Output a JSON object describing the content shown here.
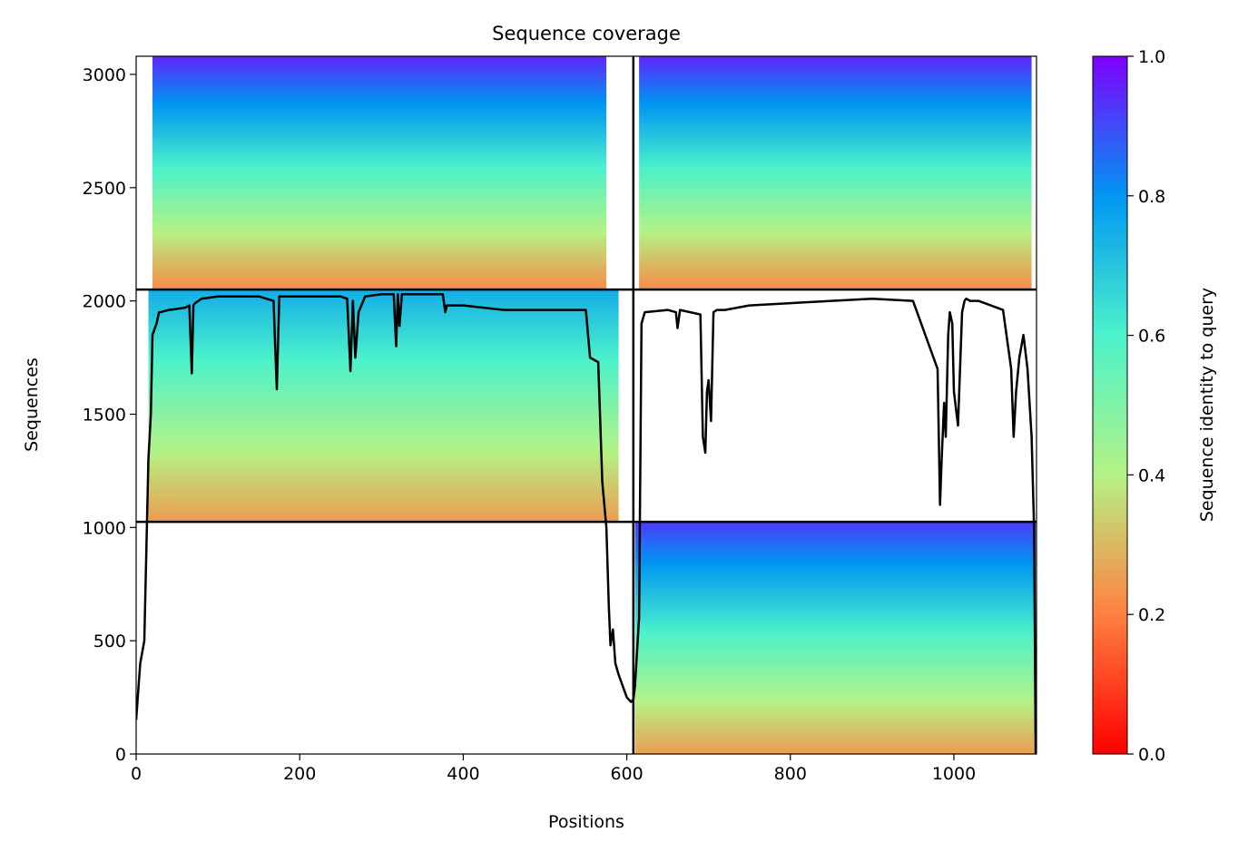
{
  "chart_data": {
    "type": "heatmap",
    "title": "Sequence coverage",
    "xlabel": "Positions",
    "ylabel": "Sequences",
    "xlim": [
      0,
      1101
    ],
    "ylim": [
      0,
      3080
    ],
    "x_ticks": [
      0,
      200,
      400,
      600,
      800,
      1000
    ],
    "y_ticks": [
      0,
      500,
      1000,
      1500,
      2000,
      2500,
      3000
    ],
    "colorbar": {
      "label": "Sequence identity to query",
      "range": [
        0,
        1
      ],
      "ticks": [
        "0.0",
        "0.2",
        "0.4",
        "0.6",
        "0.8",
        "1.0"
      ],
      "colormap": "rainbow_r"
    },
    "blocks": [
      {
        "x": [
          0,
          608
        ],
        "y": [
          2050,
          3080
        ],
        "identity_top": 0.95,
        "identity_bottom": 0.22,
        "fill_start": 20,
        "fill_end": 575
      },
      {
        "x": [
          608,
          1101
        ],
        "y": [
          2050,
          3080
        ],
        "identity_top": 0.95,
        "identity_bottom": 0.22,
        "fill_start": 615,
        "fill_end": 1095
      },
      {
        "x": [
          0,
          608
        ],
        "y": [
          1025,
          2050
        ],
        "identity_top": 0.75,
        "identity_bottom": 0.25,
        "fill_start": 15,
        "fill_end": 590
      },
      {
        "x": [
          608,
          1101
        ],
        "y": [
          1025,
          2050
        ],
        "empty": true
      },
      {
        "x": [
          0,
          608
        ],
        "y": [
          0,
          1025
        ],
        "empty": true
      },
      {
        "x": [
          608,
          1101
        ],
        "y": [
          0,
          1025
        ],
        "identity_top": 0.92,
        "identity_bottom": 0.25,
        "fill_start": 610,
        "fill_end": 1100
      }
    ],
    "divider_x": 608,
    "divider_y": [
      1025,
      2050
    ],
    "coverage_line": {
      "color": "#000000",
      "x": [
        0,
        5,
        10,
        15,
        18,
        20,
        25,
        28,
        30,
        40,
        60,
        65,
        68,
        70,
        72,
        80,
        100,
        150,
        168,
        170,
        172,
        175,
        178,
        200,
        250,
        258,
        262,
        265,
        268,
        272,
        280,
        300,
        315,
        318,
        320,
        322,
        325,
        330,
        360,
        375,
        378,
        380,
        400,
        450,
        500,
        550,
        555,
        560,
        565,
        570,
        575,
        578,
        580,
        583,
        586,
        590,
        595,
        600,
        605,
        608,
        610,
        615,
        618,
        622,
        650,
        660,
        662,
        665,
        690,
        693,
        696,
        698,
        700,
        703,
        706,
        710,
        720,
        750,
        800,
        850,
        900,
        950,
        980,
        983,
        985,
        988,
        990,
        993,
        995,
        998,
        1000,
        1005,
        1010,
        1013,
        1015,
        1020,
        1030,
        1060,
        1070,
        1073,
        1076,
        1080,
        1085,
        1090,
        1095,
        1098,
        1100
      ],
      "y": [
        150,
        400,
        500,
        1300,
        1500,
        1850,
        1900,
        1950,
        1950,
        1960,
        1970,
        1980,
        1680,
        1980,
        1990,
        2010,
        2020,
        2020,
        2000,
        1800,
        1610,
        2020,
        2020,
        2020,
        2020,
        2010,
        1690,
        2000,
        1750,
        1950,
        2020,
        2030,
        2030,
        1800,
        2030,
        1890,
        2030,
        2030,
        2030,
        2030,
        1950,
        1980,
        1980,
        1960,
        1960,
        1960,
        1750,
        1740,
        1730,
        1200,
        1000,
        650,
        480,
        550,
        400,
        350,
        300,
        250,
        230,
        240,
        300,
        600,
        1900,
        1950,
        1960,
        1950,
        1880,
        1960,
        1940,
        1400,
        1330,
        1600,
        1650,
        1470,
        1950,
        1960,
        1960,
        1980,
        1990,
        2000,
        2010,
        2000,
        1700,
        1100,
        1300,
        1550,
        1400,
        1850,
        1950,
        1900,
        1600,
        1450,
        1950,
        2000,
        2010,
        2000,
        2000,
        1960,
        1700,
        1400,
        1600,
        1750,
        1850,
        1700,
        1400,
        1000,
        0
      ]
    }
  }
}
